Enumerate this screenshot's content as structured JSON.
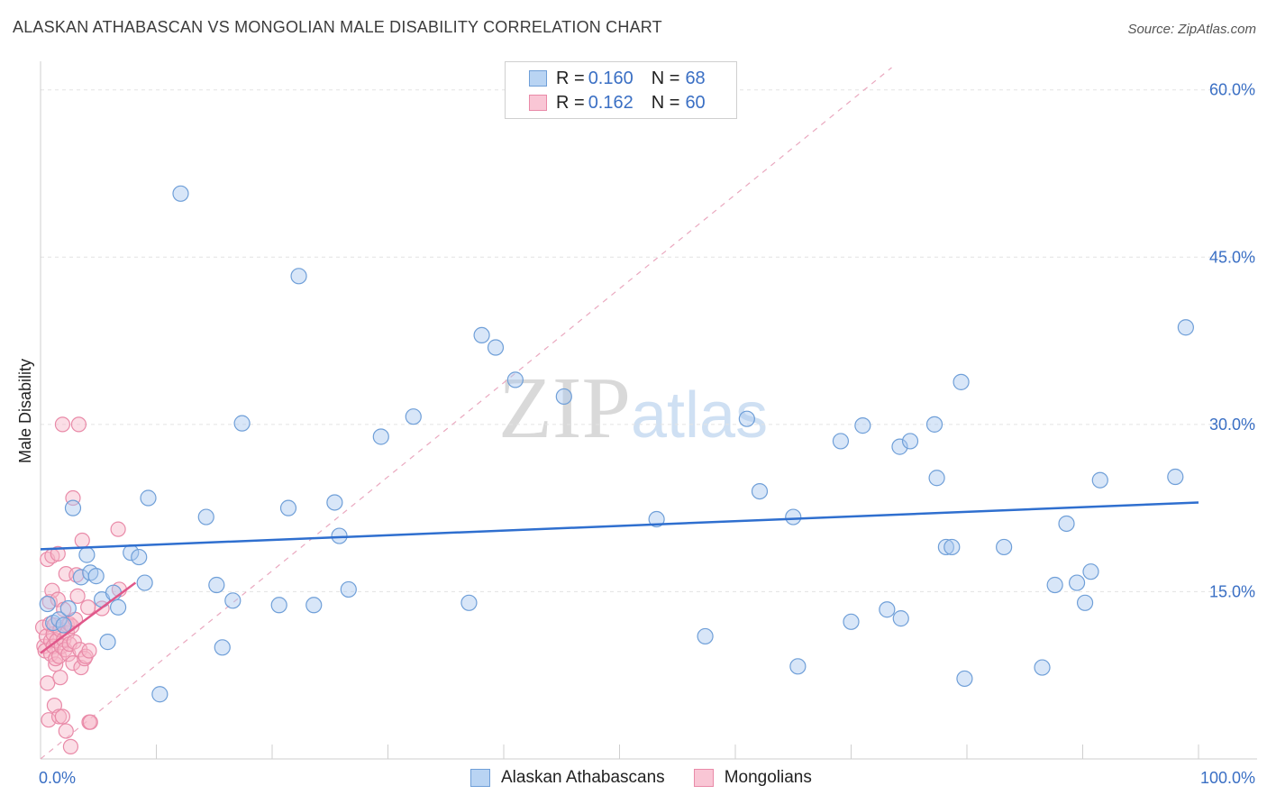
{
  "title": "ALASKAN ATHABASCAN VS MONGOLIAN MALE DISABILITY CORRELATION CHART",
  "source": "Source: ZipAtlas.com",
  "watermark": {
    "zip": "ZIP",
    "atlas": "atlas"
  },
  "legend": {
    "rows": [
      {
        "r_label": "R = ",
        "r_value": "0.160",
        "n_label": "N = ",
        "n_value": "68"
      },
      {
        "r_label": "R = ",
        "r_value": "0.162",
        "n_label": "N = ",
        "n_value": "60"
      }
    ]
  },
  "bottom_legend": {
    "series_a": "Alaskan Athabascans",
    "series_b": "Mongolians"
  },
  "colors": {
    "blue_fill": "#a8c8ef",
    "blue_stroke": "#6f9fd8",
    "blue_line": "#2f6fcf",
    "pink_fill": "#f6b5c8",
    "pink_stroke": "#e98aa8",
    "pink_line": "#e0578a",
    "axis_text": "#3a6fc4",
    "grid": "#e3e3e3"
  },
  "chart_data": {
    "type": "scatter",
    "title": "ALASKAN ATHABASCAN VS MONGOLIAN MALE DISABILITY CORRELATION CHART",
    "xlabel": "",
    "ylabel": "Male Disability",
    "xlim": [
      0,
      100
    ],
    "ylim": [
      0,
      62
    ],
    "x_tick_labels": [
      "0.0%",
      "100.0%"
    ],
    "y_ticks": [
      15,
      30,
      45,
      60
    ],
    "y_tick_labels": [
      "15.0%",
      "30.0%",
      "45.0%",
      "60.0%"
    ],
    "grid": true,
    "legend_position": "top-center",
    "series": [
      {
        "name": "Alaskan Athabascans",
        "R": 0.16,
        "N": 68,
        "trend": {
          "x": [
            0,
            100
          ],
          "y": [
            18.8,
            23.0
          ]
        },
        "points": [
          [
            0.6,
            13.9
          ],
          [
            1.1,
            12.2
          ],
          [
            1.6,
            12.5
          ],
          [
            2.0,
            12.0
          ],
          [
            2.4,
            13.5
          ],
          [
            2.8,
            22.5
          ],
          [
            3.5,
            16.3
          ],
          [
            4.0,
            18.3
          ],
          [
            4.3,
            16.7
          ],
          [
            4.8,
            16.4
          ],
          [
            5.3,
            14.3
          ],
          [
            5.8,
            10.5
          ],
          [
            6.3,
            14.9
          ],
          [
            6.7,
            13.6
          ],
          [
            7.8,
            18.5
          ],
          [
            8.5,
            18.1
          ],
          [
            9.0,
            15.8
          ],
          [
            9.3,
            23.4
          ],
          [
            10.3,
            5.8
          ],
          [
            12.1,
            50.7
          ],
          [
            14.3,
            21.7
          ],
          [
            15.2,
            15.6
          ],
          [
            15.7,
            10.0
          ],
          [
            16.6,
            14.2
          ],
          [
            17.4,
            30.1
          ],
          [
            20.6,
            13.8
          ],
          [
            21.4,
            22.5
          ],
          [
            22.3,
            43.3
          ],
          [
            23.6,
            13.8
          ],
          [
            25.4,
            23.0
          ],
          [
            25.8,
            20.0
          ],
          [
            26.6,
            15.2
          ],
          [
            29.4,
            28.9
          ],
          [
            32.2,
            30.7
          ],
          [
            37.0,
            14.0
          ],
          [
            38.1,
            38.0
          ],
          [
            39.3,
            36.9
          ],
          [
            41.0,
            34.0
          ],
          [
            45.2,
            32.5
          ],
          [
            53.2,
            21.5
          ],
          [
            57.4,
            11.0
          ],
          [
            61.0,
            30.5
          ],
          [
            62.1,
            24.0
          ],
          [
            65.0,
            21.7
          ],
          [
            65.4,
            8.3
          ],
          [
            69.1,
            28.5
          ],
          [
            70.0,
            12.3
          ],
          [
            71.0,
            29.9
          ],
          [
            73.1,
            13.4
          ],
          [
            74.2,
            28.0
          ],
          [
            74.3,
            12.6
          ],
          [
            75.1,
            28.5
          ],
          [
            77.2,
            30.0
          ],
          [
            77.4,
            25.2
          ],
          [
            78.2,
            19.0
          ],
          [
            78.7,
            19.0
          ],
          [
            79.5,
            33.8
          ],
          [
            79.8,
            7.2
          ],
          [
            83.2,
            19.0
          ],
          [
            86.5,
            8.2
          ],
          [
            87.6,
            15.6
          ],
          [
            88.6,
            21.1
          ],
          [
            89.5,
            15.8
          ],
          [
            90.2,
            14.0
          ],
          [
            90.7,
            16.8
          ],
          [
            91.5,
            25.0
          ],
          [
            98.0,
            25.3
          ],
          [
            98.9,
            38.7
          ]
        ]
      },
      {
        "name": "Mongolians",
        "R": 0.162,
        "N": 60,
        "trend": {
          "x": [
            0,
            8.2
          ],
          "y": [
            9.5,
            15.8
          ]
        },
        "points": [
          [
            0.2,
            11.8
          ],
          [
            0.3,
            10.1
          ],
          [
            0.4,
            9.7
          ],
          [
            0.5,
            11.0
          ],
          [
            0.6,
            6.8
          ],
          [
            0.6,
            17.9
          ],
          [
            0.7,
            3.5
          ],
          [
            0.8,
            14.1
          ],
          [
            0.8,
            12.1
          ],
          [
            0.9,
            10.6
          ],
          [
            0.9,
            9.4
          ],
          [
            1.0,
            15.1
          ],
          [
            1.0,
            18.2
          ],
          [
            1.1,
            11.2
          ],
          [
            1.1,
            10.1
          ],
          [
            1.2,
            4.8
          ],
          [
            1.2,
            12.0
          ],
          [
            1.3,
            8.5
          ],
          [
            1.3,
            9.0
          ],
          [
            1.4,
            10.6
          ],
          [
            1.5,
            18.4
          ],
          [
            1.5,
            14.3
          ],
          [
            1.6,
            3.8
          ],
          [
            1.6,
            9.2
          ],
          [
            1.7,
            7.3
          ],
          [
            1.7,
            11.6
          ],
          [
            1.8,
            10.1
          ],
          [
            1.9,
            30.0
          ],
          [
            1.9,
            3.8
          ],
          [
            2.0,
            13.4
          ],
          [
            2.0,
            10.7
          ],
          [
            2.1,
            9.8
          ],
          [
            2.2,
            2.5
          ],
          [
            2.2,
            16.6
          ],
          [
            2.3,
            12.0
          ],
          [
            2.3,
            11.3
          ],
          [
            2.4,
            9.4
          ],
          [
            2.5,
            12.1
          ],
          [
            2.5,
            10.3
          ],
          [
            2.6,
            1.1
          ],
          [
            2.7,
            11.9
          ],
          [
            2.8,
            8.6
          ],
          [
            2.8,
            23.4
          ],
          [
            2.9,
            10.5
          ],
          [
            3.0,
            12.5
          ],
          [
            3.1,
            16.5
          ],
          [
            3.2,
            14.6
          ],
          [
            3.3,
            30.0
          ],
          [
            3.4,
            9.8
          ],
          [
            3.5,
            8.2
          ],
          [
            3.6,
            19.6
          ],
          [
            3.8,
            9.0
          ],
          [
            3.9,
            9.2
          ],
          [
            4.1,
            13.6
          ],
          [
            4.2,
            9.7
          ],
          [
            4.2,
            3.3
          ],
          [
            4.3,
            3.3
          ],
          [
            5.3,
            13.5
          ],
          [
            6.7,
            20.6
          ],
          [
            6.8,
            15.2
          ]
        ]
      }
    ]
  }
}
